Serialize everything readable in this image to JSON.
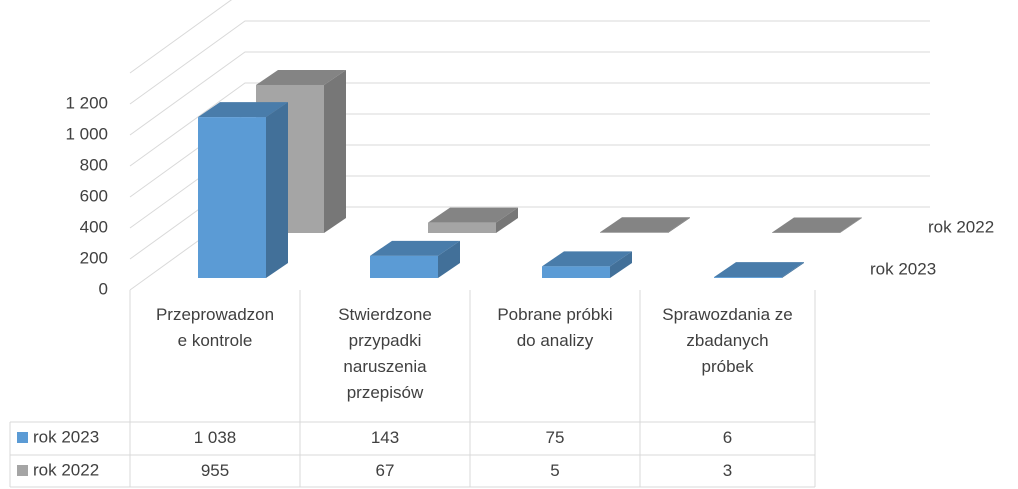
{
  "chart_data": {
    "type": "bar3d",
    "categories": [
      "Przeprowadzone kontrole",
      "Stwierdzone przypadki naruszenia przepisów",
      "Pobrane próbki do analizy",
      "Sprawozdania ze zbadanych próbek"
    ],
    "series": [
      {
        "name": "rok 2023",
        "color": "#5b9bd5",
        "values": [
          1038,
          143,
          75,
          6
        ],
        "value_labels": [
          "1 038",
          "143",
          "75",
          "6"
        ]
      },
      {
        "name": "rok 2022",
        "color": "#a5a5a5",
        "values": [
          955,
          67,
          5,
          3
        ],
        "value_labels": [
          "955",
          "67",
          "5",
          "3"
        ]
      }
    ],
    "ylim": [
      0,
      1400
    ],
    "yticks": [
      0,
      200,
      400,
      600,
      800,
      {
        "value": 1000,
        "label": "1 000"
      },
      {
        "value": 1200,
        "label": "1 200"
      }
    ],
    "grid": true,
    "data_table": true
  }
}
